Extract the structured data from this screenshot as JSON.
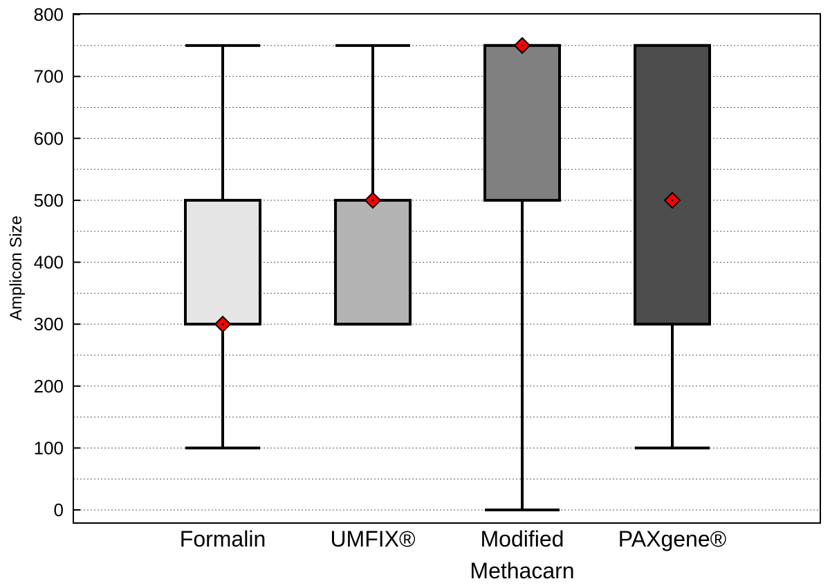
{
  "chart_data": {
    "type": "box",
    "ylabel": "Amplicon Size",
    "xlabel": "",
    "title": "",
    "ylim": [
      -20,
      800
    ],
    "yticks": [
      0,
      100,
      200,
      300,
      400,
      500,
      600,
      700,
      800
    ],
    "ytick_labels": [
      "0",
      "100",
      "200",
      "300",
      "400",
      "500",
      "600",
      "700",
      "800"
    ],
    "grid": "horizontal dotted every 50",
    "categories": [
      {
        "label_lines": [
          "Formalin"
        ],
        "min": 100,
        "q1": 300,
        "q3": 500,
        "max": 750,
        "marker": 300,
        "color": "#e5e5e5"
      },
      {
        "label_lines": [
          "UMFIX®"
        ],
        "min": 300,
        "q1": 300,
        "q3": 500,
        "max": 750,
        "marker": 500,
        "color": "#b3b3b3"
      },
      {
        "label_lines": [
          "Modified",
          "Methacarn"
        ],
        "min": 0,
        "q1": 500,
        "q3": 750,
        "max": 750,
        "marker": 750,
        "color": "#808080"
      },
      {
        "label_lines": [
          "PAXgene®"
        ],
        "min": 100,
        "q1": 300,
        "q3": 750,
        "max": 750,
        "marker": 500,
        "color": "#4d4d4d"
      }
    ],
    "marker_color": "#ff0000"
  }
}
